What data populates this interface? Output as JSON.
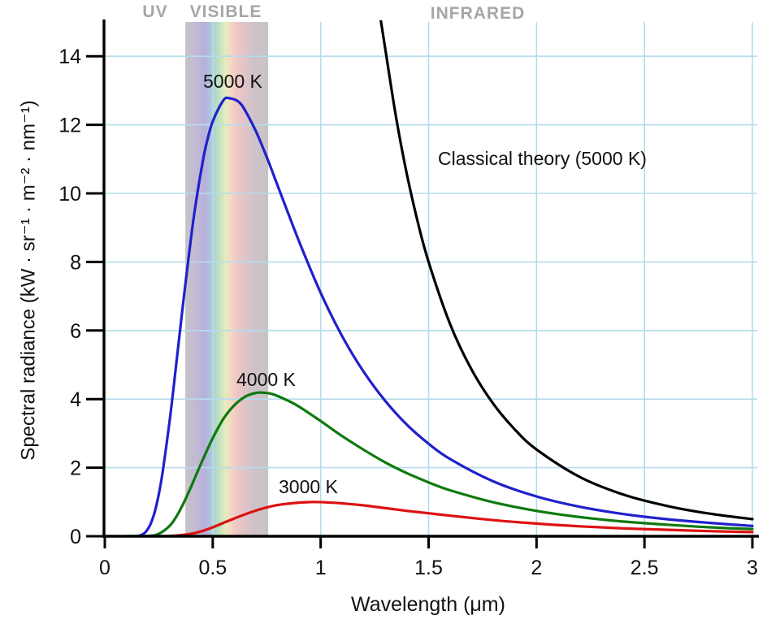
{
  "chart_data": {
    "type": "line",
    "title": "",
    "xlabel": "Wavelength (μm)",
    "ylabel": "Spectral radiance (kW · sr⁻¹ · m⁻² · nm⁻¹)",
    "xlim": [
      0,
      3
    ],
    "ylim": [
      0,
      15
    ],
    "xticks": [
      0,
      0.5,
      1,
      1.5,
      2,
      2.5,
      3
    ],
    "xtick_labels": [
      "0",
      "0.5",
      "1",
      "1.5",
      "2",
      "2.5",
      "3"
    ],
    "yticks": [
      0,
      2,
      4,
      6,
      8,
      10,
      12,
      14
    ],
    "ytick_labels": [
      "0",
      "2",
      "4",
      "6",
      "8",
      "10",
      "12",
      "14"
    ],
    "grid": true,
    "grid_color": "#b5dcec",
    "axis_color": "#000000",
    "regions": [
      {
        "label": "UV"
      },
      {
        "label": "VISIBLE",
        "x_range": [
          0.373,
          0.757
        ]
      },
      {
        "label": "INFRARED"
      }
    ],
    "visible_band_gradient": [
      {
        "offset": 0.0,
        "color": "#c7c3c7"
      },
      {
        "offset": 0.13,
        "color": "#c2bad4"
      },
      {
        "offset": 0.23,
        "color": "#b7afd9"
      },
      {
        "offset": 0.3,
        "color": "#afc3de"
      },
      {
        "offset": 0.36,
        "color": "#b2d8cb"
      },
      {
        "offset": 0.42,
        "color": "#c4e4bc"
      },
      {
        "offset": 0.48,
        "color": "#e5ebc0"
      },
      {
        "offset": 0.54,
        "color": "#f0ddc0"
      },
      {
        "offset": 0.61,
        "color": "#f1c8c5"
      },
      {
        "offset": 0.7,
        "color": "#e2c4c9"
      },
      {
        "offset": 0.82,
        "color": "#cfc3c8"
      },
      {
        "offset": 1.0,
        "color": "#c7c3c7"
      }
    ],
    "series": [
      {
        "name": "5000 K",
        "color": "#2020cc",
        "points": [
          [
            0.03,
            0
          ],
          [
            0.1,
            0
          ],
          [
            0.15,
            0.01
          ],
          [
            0.17,
            0.04
          ],
          [
            0.19,
            0.13
          ],
          [
            0.21,
            0.33
          ],
          [
            0.23,
            0.68
          ],
          [
            0.25,
            1.22
          ],
          [
            0.27,
            1.95
          ],
          [
            0.3,
            3.35
          ],
          [
            0.32,
            4.41
          ],
          [
            0.35,
            6.09
          ],
          [
            0.37,
            7.18
          ],
          [
            0.4,
            8.74
          ],
          [
            0.42,
            9.65
          ],
          [
            0.45,
            10.8
          ],
          [
            0.47,
            11.43
          ],
          [
            0.5,
            12.1
          ],
          [
            0.55,
            12.72
          ],
          [
            0.58,
            12.77
          ],
          [
            0.62,
            12.67
          ],
          [
            0.65,
            12.42
          ],
          [
            0.7,
            11.81
          ],
          [
            0.75,
            11.06
          ],
          [
            0.8,
            10.24
          ],
          [
            0.9,
            8.6
          ],
          [
            1.0,
            7.1
          ],
          [
            1.1,
            5.83
          ],
          [
            1.2,
            4.79
          ],
          [
            1.3,
            3.94
          ],
          [
            1.4,
            3.25
          ],
          [
            1.5,
            2.7
          ],
          [
            1.6,
            2.25
          ],
          [
            1.8,
            1.6
          ],
          [
            2.0,
            1.16
          ],
          [
            2.2,
            0.86
          ],
          [
            2.4,
            0.65
          ],
          [
            2.6,
            0.5
          ],
          [
            2.8,
            0.39
          ],
          [
            3.0,
            0.3
          ]
        ]
      },
      {
        "name": "4000 K",
        "color": "#0e7a0e",
        "points": [
          [
            0.1,
            0
          ],
          [
            0.2,
            0.01
          ],
          [
            0.25,
            0.07
          ],
          [
            0.3,
            0.3
          ],
          [
            0.33,
            0.56
          ],
          [
            0.36,
            0.9
          ],
          [
            0.4,
            1.45
          ],
          [
            0.45,
            2.18
          ],
          [
            0.5,
            2.86
          ],
          [
            0.55,
            3.43
          ],
          [
            0.6,
            3.82
          ],
          [
            0.65,
            4.07
          ],
          [
            0.7,
            4.18
          ],
          [
            0.73,
            4.19
          ],
          [
            0.78,
            4.14
          ],
          [
            0.85,
            3.95
          ],
          [
            0.9,
            3.78
          ],
          [
            1.0,
            3.36
          ],
          [
            1.1,
            2.92
          ],
          [
            1.2,
            2.52
          ],
          [
            1.3,
            2.15
          ],
          [
            1.4,
            1.84
          ],
          [
            1.5,
            1.57
          ],
          [
            1.6,
            1.34
          ],
          [
            1.8,
            0.99
          ],
          [
            2.0,
            0.74
          ],
          [
            2.2,
            0.56
          ],
          [
            2.4,
            0.43
          ],
          [
            2.6,
            0.34
          ],
          [
            2.8,
            0.26
          ],
          [
            3.0,
            0.21
          ]
        ]
      },
      {
        "name": "3000 K",
        "color": "#dd1111",
        "points": [
          [
            0.2,
            0
          ],
          [
            0.3,
            0.01
          ],
          [
            0.35,
            0.03
          ],
          [
            0.4,
            0.07
          ],
          [
            0.45,
            0.15
          ],
          [
            0.5,
            0.26
          ],
          [
            0.55,
            0.39
          ],
          [
            0.6,
            0.52
          ],
          [
            0.65,
            0.64
          ],
          [
            0.7,
            0.75
          ],
          [
            0.75,
            0.84
          ],
          [
            0.8,
            0.91
          ],
          [
            0.85,
            0.95
          ],
          [
            0.9,
            0.98
          ],
          [
            0.97,
            1.0
          ],
          [
            1.05,
            0.98
          ],
          [
            1.1,
            0.96
          ],
          [
            1.2,
            0.9
          ],
          [
            1.3,
            0.82
          ],
          [
            1.4,
            0.74
          ],
          [
            1.5,
            0.67
          ],
          [
            1.6,
            0.6
          ],
          [
            1.8,
            0.47
          ],
          [
            2.0,
            0.37
          ],
          [
            2.2,
            0.29
          ],
          [
            2.4,
            0.23
          ],
          [
            2.6,
            0.19
          ],
          [
            2.8,
            0.15
          ],
          [
            3.0,
            0.12
          ]
        ]
      },
      {
        "name": "Classical theory (5000 K)",
        "color": "#000000",
        "points": [
          [
            1.26,
            15.8
          ],
          [
            1.3,
            14.18
          ],
          [
            1.35,
            12.19
          ],
          [
            1.4,
            10.54
          ],
          [
            1.45,
            9.16
          ],
          [
            1.5,
            8.0
          ],
          [
            1.6,
            6.18
          ],
          [
            1.7,
            4.85
          ],
          [
            1.8,
            3.86
          ],
          [
            1.9,
            3.11
          ],
          [
            2.0,
            2.53
          ],
          [
            2.2,
            1.73
          ],
          [
            2.4,
            1.22
          ],
          [
            2.6,
            0.89
          ],
          [
            2.8,
            0.66
          ],
          [
            3.0,
            0.5
          ]
        ]
      }
    ]
  }
}
